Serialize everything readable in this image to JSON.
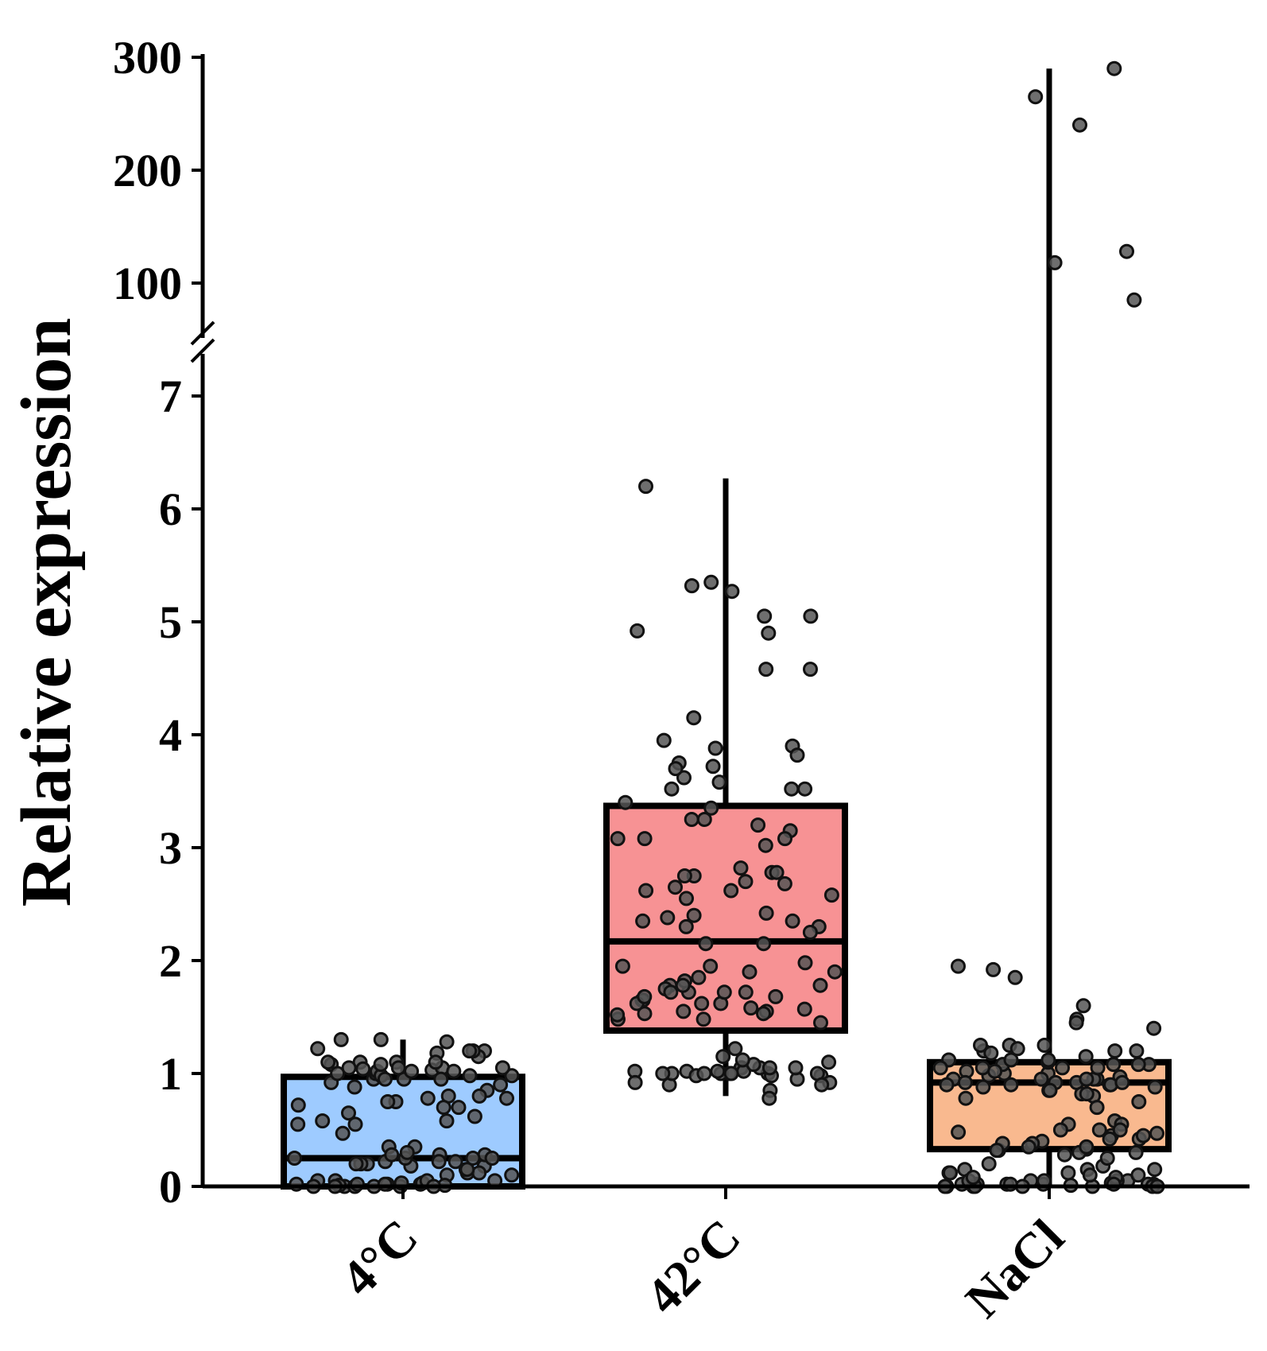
{
  "chart_data": {
    "type": "box",
    "ylabel": "Relative expression",
    "xlabel": "",
    "y_axis": {
      "broken": true,
      "lower_segment": {
        "range": [
          0,
          7.5
        ],
        "ticks": [
          "0",
          "1",
          "2",
          "3",
          "4",
          "5",
          "6",
          "7"
        ]
      },
      "upper_segment": {
        "range": [
          75,
          300
        ],
        "ticks": [
          "100",
          "200",
          "300"
        ]
      }
    },
    "categories": [
      "4°C",
      "42°C",
      "NaCl"
    ],
    "colors": {
      "4°C": "#9ecbff",
      "42°C": "#f79294",
      "NaCl": "#f9b98f",
      "points": "#555555"
    },
    "boxes": [
      {
        "category": "4°C",
        "whisker_low": 0.0,
        "q1": 0.0,
        "median": 0.25,
        "q3": 0.97,
        "whisker_high": 1.3
      },
      {
        "category": "42°C",
        "whisker_low": 0.8,
        "q1": 1.38,
        "median": 2.17,
        "q3": 3.37,
        "whisker_high": 6.27
      },
      {
        "category": "NaCl",
        "whisker_low": 0.0,
        "q1": 0.33,
        "median": 0.92,
        "q3": 1.1,
        "whisker_high": 290
      }
    ],
    "points": {
      "4°C": [
        1.18,
        1.1,
        1.03,
        0.98,
        1.05,
        0.95,
        0.92,
        0.85,
        0.8,
        0.62,
        0.22,
        0.2,
        0.12,
        0.05,
        0.02,
        0.0,
        0.01,
        0.15,
        1.2,
        1.15,
        1.22,
        1.1,
        1.02,
        0.95,
        0.88,
        0.0,
        0.05,
        0.18,
        0.22,
        0.02,
        1.2,
        1.08,
        1.1,
        1.04,
        1.0,
        0.95,
        0.78,
        0.75,
        0.7,
        0.47,
        0.35,
        0.28,
        0.25,
        0.2,
        0.18,
        0.12,
        0.1,
        0.05,
        0.03,
        0.0,
        0.01,
        1.3,
        1.28,
        1.05,
        1.02,
        0.98,
        0.95,
        0.9,
        0.75,
        0.72,
        0.65,
        0.58,
        0.28,
        0.25,
        0.2,
        0.0,
        0.02,
        1.3,
        1.2,
        1.05,
        1.02,
        0.8,
        0.78,
        0.58,
        0.55,
        0.35,
        0.28,
        0.25,
        0.22,
        0.02,
        0.0,
        1.05,
        1.0,
        0.3,
        0.25,
        0.05,
        0.02,
        0.0,
        1.1,
        1.08,
        0.98,
        0.7,
        0.55,
        0.15,
        0.1,
        0.03,
        0.0
      ],
      "42°C": [
        2.82,
        2.15,
        1.98,
        1.05,
        1.0,
        1.02,
        0.98,
        0.92,
        0.9,
        3.88,
        3.9,
        3.62,
        3.52,
        2.38,
        2.35,
        2.15,
        1.95,
        1.48,
        1.02,
        0.98,
        3.82,
        3.15,
        1.9,
        1.72,
        1.57,
        1.55,
        1.52,
        1.0,
        5.27,
        3.2,
        1.55,
        1.53,
        1.15,
        1.05,
        1.0,
        3.02,
        1.53,
        1.05,
        1.0,
        5.05,
        3.72,
        2.55,
        2.42,
        2.4,
        1.85,
        1.78,
        1.72,
        1.65,
        1.22,
        1.1,
        1.05,
        1.0,
        0.95,
        3.52,
        2.3,
        1.62,
        1.0,
        6.2,
        5.05,
        3.25,
        3.08,
        1.9,
        1.62,
        4.92,
        3.08,
        2.35,
        1.65,
        3.08,
        2.78,
        0.85,
        4.15,
        3.95,
        3.58,
        2.3,
        1.82,
        1.62,
        4.58,
        2.75,
        2.58,
        1.75,
        1.72,
        1.02,
        0.92,
        3.52,
        2.78,
        1.78,
        1.05,
        3.75,
        2.62,
        1.68,
        1.0,
        4.9,
        4.58,
        3.7,
        2.62,
        2.68,
        1.95,
        1.68,
        1.72,
        1.02,
        0.98,
        0.78,
        1.08,
        1.12,
        5.32,
        5.35,
        3.35,
        2.7,
        2.75,
        1.45,
        1.78,
        1.58,
        1.0,
        2.25,
        2.65,
        3.4,
        3.25,
        1.48,
        0.9
      ],
      "NaCl": [
        0.02,
        0.0,
        0.05,
        0.0,
        0.02,
        1.2,
        1.0,
        1.08,
        0.95,
        0.47,
        0.45,
        0.4,
        0.33,
        0.3,
        0.02,
        0.03,
        0.01,
        1.48,
        1.05,
        0.48,
        0.42,
        0.18,
        0.0,
        1.6,
        1.08,
        0.97,
        0.5,
        0.02,
        118,
        85,
        1.2,
        1.02,
        0.98,
        0.75,
        0.58,
        0.32,
        0.02,
        0.05,
        0.9,
        0.0,
        0.95,
        0.88,
        0.55,
        0.5,
        0.25,
        0.2,
        0.0,
        1.95,
        1.92,
        1.85,
        1.25,
        1.0,
        0.95,
        0.9,
        0.92,
        0.1,
        1.25,
        1.12,
        1.02,
        0.9,
        0.85,
        0.3,
        0.28,
        0.15,
        0.05,
        265,
        240,
        1.45,
        1.25,
        0.92,
        0.55,
        0.5,
        0.42,
        0.38,
        0.12,
        0.0,
        290,
        1.2,
        1.18,
        1.05,
        0.95,
        0.45,
        0.35,
        0.02,
        0.0,
        0.15,
        0.05,
        0.1,
        0.92,
        0.85,
        0.8,
        0.7,
        0.38,
        0.32,
        0.12,
        0.0,
        128,
        1.1,
        1.12,
        1.05,
        0.02,
        0.15,
        0.08,
        0.12,
        1.4,
        1.08,
        1.05,
        0.92,
        0.88,
        0.82,
        0.35,
        0.05,
        0.02,
        1.22,
        1.15,
        1.12,
        1.08,
        0.95,
        0.9,
        0.82,
        0.78,
        0.08,
        0.0
      ]
    }
  }
}
